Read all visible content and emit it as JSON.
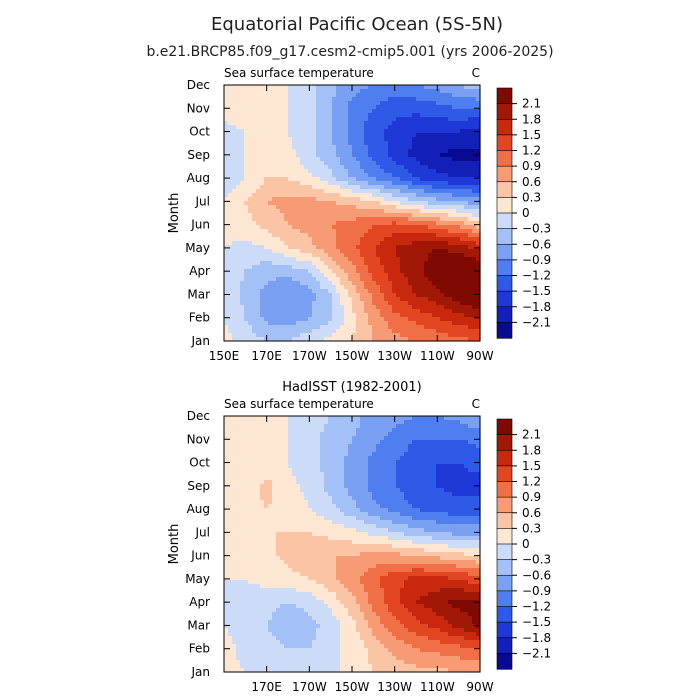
{
  "figure": {
    "title": "Equatorial Pacific Ocean (5S-5N)",
    "subtitle": "b.e21.BRCP85.f09_g17.cesm2-cmip5.001 (yrs 2006-2025)"
  },
  "chart_data": [
    {
      "type": "heatmap",
      "panel_title": "",
      "left_label": "Sea surface temperature",
      "right_label": "C",
      "ylabel": "Month",
      "xticks": [
        "150E",
        "170E",
        "170W",
        "150W",
        "130W",
        "110W",
        "90W"
      ],
      "yticks": [
        "Jan",
        "Feb",
        "Mar",
        "Apr",
        "May",
        "Jun",
        "Jul",
        "Aug",
        "Sep",
        "Oct",
        "Nov",
        "Dec"
      ],
      "xlim": [
        150,
        270
      ],
      "x_units": "degrees longitude (150E to 90W)",
      "x": [
        150,
        160,
        170,
        180,
        190,
        200,
        210,
        220,
        230,
        240,
        250,
        260,
        270
      ],
      "z": [
        [
          0.1,
          -0.1,
          -0.3,
          -0.3,
          -0.1,
          0.1,
          0.3,
          0.6,
          0.8,
          0.9,
          1.0,
          1.1,
          1.2
        ],
        [
          0.0,
          -0.3,
          -0.7,
          -0.8,
          -0.6,
          -0.4,
          0.2,
          0.7,
          1.1,
          1.3,
          1.5,
          1.7,
          1.8
        ],
        [
          0.0,
          -0.4,
          -0.7,
          -0.9,
          -0.7,
          -0.3,
          0.4,
          1.0,
          1.5,
          1.8,
          2.0,
          2.3,
          2.6
        ],
        [
          -0.1,
          -0.3,
          -0.5,
          -0.5,
          -0.3,
          0.3,
          0.8,
          1.3,
          1.7,
          2.0,
          2.3,
          2.5,
          2.5
        ],
        [
          0.0,
          -0.1,
          0.0,
          0.3,
          0.5,
          0.8,
          1.1,
          1.5,
          1.8,
          2.0,
          2.1,
          2.0,
          1.7
        ],
        [
          0.1,
          0.2,
          0.4,
          0.6,
          0.7,
          0.9,
          1.0,
          1.2,
          1.3,
          1.2,
          1.0,
          0.8,
          0.4
        ],
        [
          0.0,
          0.3,
          0.6,
          0.7,
          0.7,
          0.6,
          0.5,
          0.3,
          0.0,
          -0.3,
          -0.5,
          -0.6,
          -0.8
        ],
        [
          -0.2,
          0.0,
          0.3,
          0.3,
          0.1,
          -0.2,
          -0.6,
          -0.9,
          -1.2,
          -1.5,
          -1.7,
          -1.8,
          -1.8
        ],
        [
          -0.2,
          0.0,
          0.2,
          0.1,
          -0.2,
          -0.5,
          -0.9,
          -1.3,
          -1.6,
          -1.9,
          -2.1,
          -2.2,
          -2.2
        ],
        [
          -0.1,
          0.0,
          0.1,
          0.0,
          -0.2,
          -0.6,
          -1.0,
          -1.4,
          -1.6,
          -1.8,
          -1.8,
          -1.8,
          -1.9
        ],
        [
          0.1,
          0.2,
          0.1,
          0.0,
          -0.2,
          -0.6,
          -1.0,
          -1.2,
          -1.4,
          -1.4,
          -1.3,
          -1.2,
          -1.2
        ],
        [
          0.2,
          0.2,
          0.2,
          0.0,
          -0.2,
          -0.5,
          -0.8,
          -0.9,
          -1.0,
          -0.9,
          -0.8,
          -0.6,
          -0.4
        ]
      ],
      "colorbar_levels": [
        "2.1",
        "1.8",
        "1.5",
        "1.2",
        "0.9",
        "0.6",
        "0.3",
        "0",
        "-0.3",
        "-0.6",
        "-0.9",
        "-1.2",
        "-1.5",
        "-1.8",
        "-2.1"
      ]
    },
    {
      "type": "heatmap",
      "panel_title": "HadISST (1982-2001)",
      "left_label": "Sea surface temperature",
      "right_label": "C",
      "ylabel": "Month",
      "xticks": [
        "",
        "170E",
        "170W",
        "150W",
        "130W",
        "110W",
        "90W"
      ],
      "yticks": [
        "Jan",
        "Feb",
        "Mar",
        "Apr",
        "May",
        "Jun",
        "Jul",
        "Aug",
        "Sep",
        "Oct",
        "Nov",
        "Dec"
      ],
      "xlim": [
        150,
        270
      ],
      "x_units": "degrees longitude (150E to 90W)",
      "x": [
        150,
        160,
        170,
        180,
        190,
        200,
        210,
        220,
        230,
        240,
        250,
        260,
        270
      ],
      "z": [
        [
          0.1,
          0.0,
          -0.1,
          -0.2,
          -0.2,
          -0.1,
          0.1,
          0.3,
          0.4,
          0.5,
          0.5,
          0.6,
          0.6
        ],
        [
          0.1,
          -0.1,
          -0.2,
          -0.3,
          -0.3,
          -0.1,
          0.1,
          0.4,
          0.7,
          0.9,
          1.0,
          1.1,
          1.2
        ],
        [
          0.0,
          -0.1,
          -0.3,
          -0.5,
          -0.4,
          -0.2,
          0.2,
          0.7,
          1.1,
          1.4,
          1.6,
          1.9,
          2.2
        ],
        [
          0.0,
          -0.1,
          -0.2,
          -0.3,
          -0.2,
          0.1,
          0.5,
          1.0,
          1.4,
          1.8,
          2.0,
          2.2,
          2.1
        ],
        [
          0.0,
          0.0,
          0.1,
          0.2,
          0.3,
          0.5,
          0.8,
          1.1,
          1.4,
          1.6,
          1.6,
          1.5,
          1.3
        ],
        [
          0.1,
          0.1,
          0.2,
          0.4,
          0.5,
          0.6,
          0.6,
          0.7,
          0.7,
          0.6,
          0.5,
          0.4,
          0.3
        ],
        [
          0.1,
          0.2,
          0.3,
          0.3,
          0.3,
          0.2,
          0.1,
          -0.1,
          -0.3,
          -0.5,
          -0.6,
          -0.7,
          -0.7
        ],
        [
          0.0,
          0.2,
          0.3,
          0.2,
          0.0,
          -0.2,
          -0.5,
          -0.8,
          -1.0,
          -1.2,
          -1.3,
          -1.4,
          -1.4
        ],
        [
          0.0,
          0.1,
          0.4,
          0.1,
          -0.1,
          -0.4,
          -0.7,
          -1.0,
          -1.2,
          -1.4,
          -1.5,
          -1.6,
          -1.6
        ],
        [
          0.0,
          0.1,
          0.1,
          0.0,
          -0.2,
          -0.4,
          -0.7,
          -1.0,
          -1.2,
          -1.4,
          -1.5,
          -1.5,
          -1.4
        ],
        [
          0.1,
          0.1,
          0.1,
          0.0,
          -0.2,
          -0.4,
          -0.6,
          -0.8,
          -1.0,
          -1.2,
          -1.2,
          -1.2,
          -1.1
        ],
        [
          0.2,
          0.2,
          0.1,
          0.0,
          -0.2,
          -0.3,
          -0.5,
          -0.7,
          -0.8,
          -0.9,
          -0.9,
          -0.8,
          -0.6
        ]
      ],
      "colorbar_levels": [
        "2.1",
        "1.8",
        "1.5",
        "1.2",
        "0.9",
        "0.6",
        "0.3",
        "0",
        "-0.3",
        "-0.6",
        "-0.9",
        "-1.2",
        "-1.5",
        "-1.8",
        "-2.1"
      ]
    }
  ],
  "colorscale": {
    "boundaries": [
      -2.1,
      -1.8,
      -1.5,
      -1.2,
      -0.9,
      -0.6,
      -0.3,
      0,
      0.3,
      0.6,
      0.9,
      1.2,
      1.5,
      1.8,
      2.1
    ],
    "colors": [
      "#080b8f",
      "#1220b8",
      "#1f39d6",
      "#2f5ae8",
      "#4f7eef",
      "#7aa0f4",
      "#a3c0f7",
      "#ccdcf8",
      "#fde6d2",
      "#fbc4a4",
      "#f79b75",
      "#f06f46",
      "#e34623",
      "#c8290e",
      "#a21806",
      "#7e0a02"
    ]
  }
}
